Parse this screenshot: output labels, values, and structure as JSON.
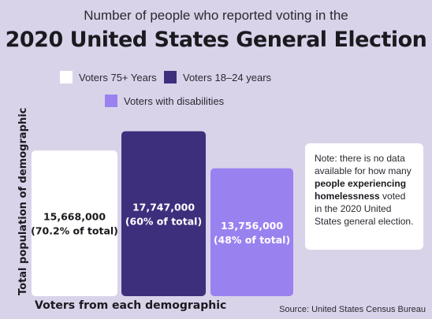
{
  "title_line1": "Number of people who reported voting in the",
  "title_line2": "2020 United States General Election",
  "legend": [
    {
      "label": "Voters 75+ Years",
      "color": "#ffffff"
    },
    {
      "label": "Voters 18–24 years",
      "color": "#3e2f7d"
    },
    {
      "label": "Voters with disabilities",
      "color": "#9a81f0"
    }
  ],
  "ylabel": "Total population of demographic",
  "xlabel": "Voters from each demographic",
  "source": "Source: United States Census Bureau",
  "note": {
    "pre": "Note: there is no data available for how many ",
    "bold": "people experiencing homelessness",
    "post": " voted in the 2020 United States general election."
  },
  "chart_data": {
    "type": "bar",
    "categories": [
      "Voters 75+ Years",
      "Voters 18–24 years",
      "Voters with disabilities"
    ],
    "values": [
      15668000,
      17747000,
      13756000
    ],
    "value_labels": [
      "15,668,000",
      "17,747,000",
      "13,756,000"
    ],
    "percent_labels": [
      "(70.2% of total)",
      "(60% of total)",
      "(48% of total)"
    ],
    "colors": [
      "#ffffff",
      "#3e2f7d",
      "#9a81f0"
    ],
    "label_colors": [
      "#1b1a1f",
      "#ffffff",
      "#ffffff"
    ],
    "title": "Number of people who reported voting in the 2020 United States General Election",
    "xlabel": "Voters from each demographic",
    "ylabel": "Total population of demographic"
  }
}
